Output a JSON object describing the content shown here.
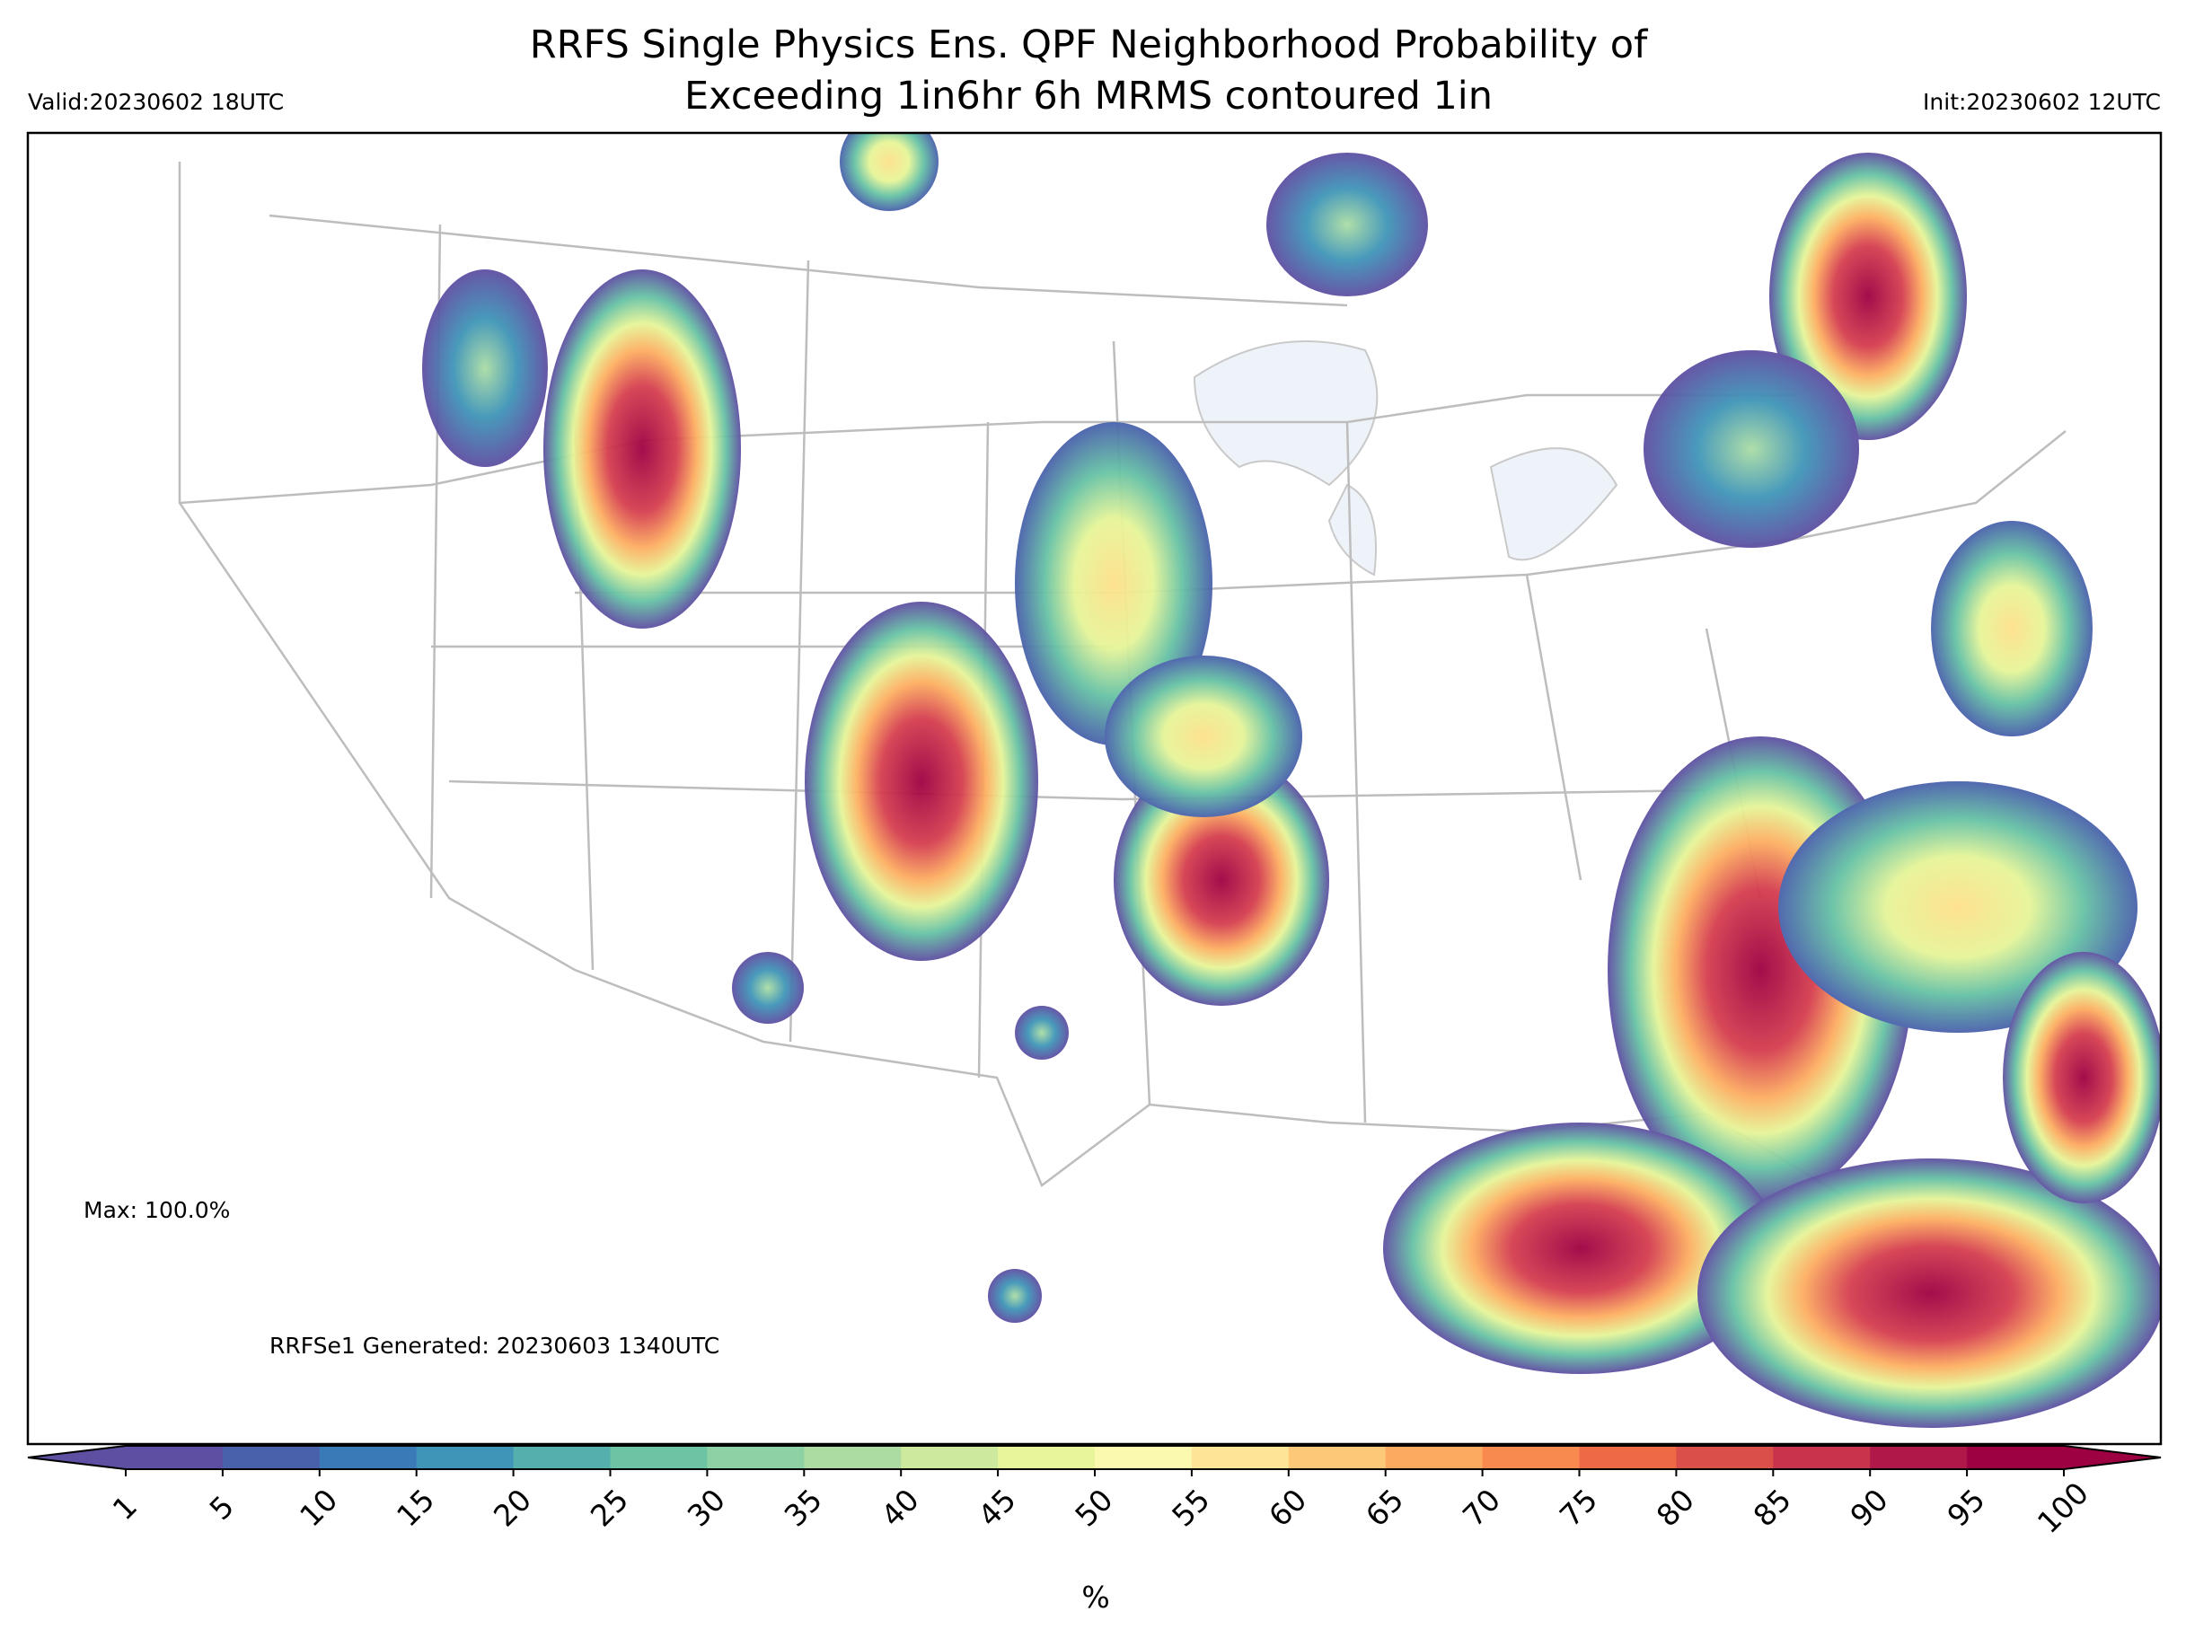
{
  "header": {
    "title_line1": "RRFS Single Physics Ens. QPF Neighborhood Probability of",
    "title_line2": "Exceeding 1in6hr 6h MRMS contoured 1in",
    "valid": "Valid:20230602 18UTC",
    "init": "Init:20230602 12UTC"
  },
  "annotations": {
    "max": "Max: 100.0%",
    "generated": "RRFSe1 Generated: 20230603 1340UTC"
  },
  "colorbar": {
    "ticks": [
      1,
      5,
      10,
      15,
      20,
      25,
      30,
      35,
      40,
      45,
      50,
      55,
      60,
      65,
      70,
      75,
      80,
      85,
      90,
      95,
      100
    ],
    "colors": [
      "#5e4fa2",
      "#4961ab",
      "#3a7bb7",
      "#3f95b8",
      "#55afac",
      "#6cc4a4",
      "#8ed1a4",
      "#addca2",
      "#cce99e",
      "#e8f59b",
      "#fbf8b0",
      "#fee496",
      "#fdc978",
      "#fcaa5f",
      "#f88a50",
      "#ee6a45",
      "#db4f4a",
      "#c9334c",
      "#b0184a",
      "#9e0142"
    ],
    "under_color": "#5e4fa2",
    "over_color": "#9e0142",
    "unit": "%"
  }
}
